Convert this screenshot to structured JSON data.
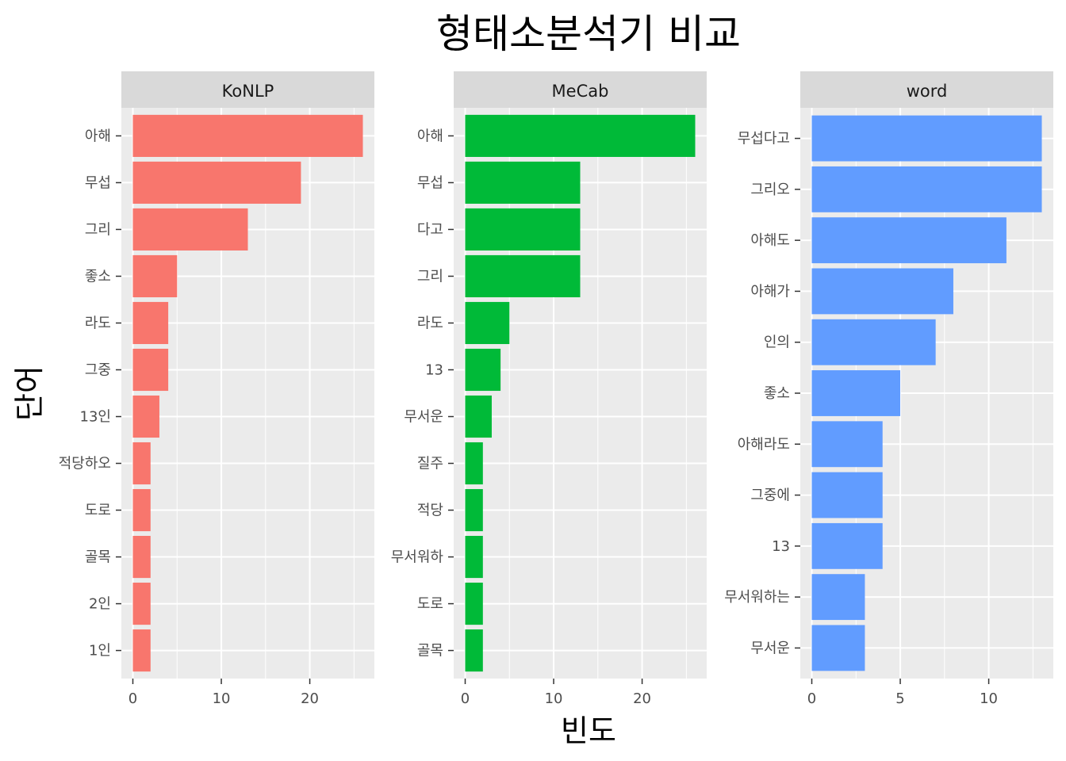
{
  "chart_data": {
    "type": "bar",
    "orientation": "horizontal",
    "title": "형태소분석기 비교",
    "xlabel": "빈도",
    "ylabel": "단어",
    "grid": true,
    "panels": [
      {
        "name": "KoNLP",
        "color": "#F8766D",
        "xlim": [
          -1.3,
          27.3
        ],
        "xticks": [
          0,
          10,
          20
        ],
        "categories": [
          "아해",
          "무섭",
          "그리",
          "좋소",
          "라도",
          "그중",
          "13인",
          "적당하오",
          "도로",
          "골목",
          "2인",
          "1인"
        ],
        "values": [
          26,
          19,
          13,
          5,
          4,
          4,
          3,
          2,
          2,
          2,
          2,
          2
        ]
      },
      {
        "name": "MeCab",
        "color": "#00BA38",
        "xlim": [
          -1.3,
          27.3
        ],
        "xticks": [
          0,
          10,
          20
        ],
        "categories": [
          "아해",
          "무섭",
          "다고",
          "그리",
          "라도",
          "13",
          "무서운",
          "질주",
          "적당",
          "무서워하",
          "도로",
          "골목"
        ],
        "values": [
          26,
          13,
          13,
          13,
          5,
          4,
          3,
          2,
          2,
          2,
          2,
          2
        ]
      },
      {
        "name": "word",
        "color": "#619CFF",
        "xlim": [
          -0.65,
          13.65
        ],
        "xticks": [
          0,
          5,
          10
        ],
        "categories": [
          "무섭다고",
          "그리오",
          "아해도",
          "아해가",
          "인의",
          "좋소",
          "아해라도",
          "그중에",
          "13",
          "무서워하는",
          "무서운"
        ],
        "values": [
          13,
          13,
          11,
          8,
          7,
          5,
          4,
          4,
          4,
          3,
          3
        ]
      }
    ]
  }
}
